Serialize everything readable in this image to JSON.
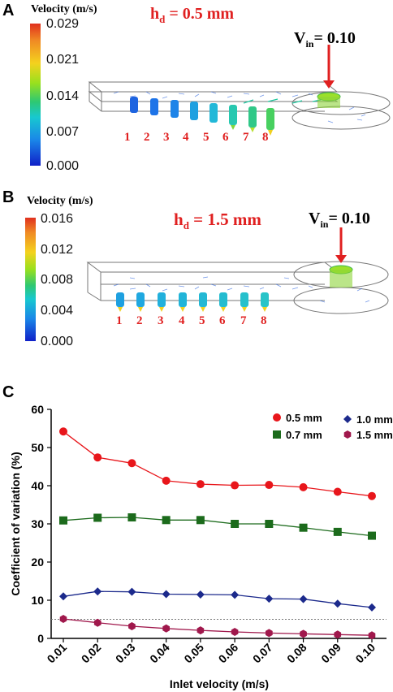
{
  "panel_a": {
    "letter": "A",
    "colorbar_title": "Velocity (m/s)",
    "ticks": [
      "0.029",
      "0.021",
      "0.014",
      "0.007",
      "0.000"
    ],
    "hd_prefix": "h",
    "hd_sub": "d",
    "hd_value": " = 0.5 mm",
    "vin_prefix": "V",
    "vin_sub": "in",
    "vin_value": "= 0.10",
    "nozzles": [
      "1",
      "2",
      "3",
      "4",
      "5",
      "6",
      "7",
      "8"
    ]
  },
  "panel_b": {
    "letter": "B",
    "colorbar_title": "Velocity (m/s)",
    "ticks": [
      "0.016",
      "0.012",
      "0.008",
      "0.004",
      "0.000"
    ],
    "hd_prefix": "h",
    "hd_sub": "d",
    "hd_value": " = 1.5 mm",
    "vin_prefix": "V",
    "vin_sub": "in",
    "vin_value": "= 0.10",
    "nozzles": [
      "1",
      "2",
      "3",
      "4",
      "5",
      "6",
      "7",
      "8"
    ]
  },
  "panel_c": {
    "letter": "C"
  },
  "colors": {
    "accent_red": "#e02020",
    "s05": "#e8161b",
    "s07": "#1c6b1c",
    "s10": "#1c2a8c",
    "s15": "#a0184c"
  },
  "chart_data": {
    "type": "line",
    "xlabel": "Inlet velocity (m/s)",
    "ylabel": "Coefficient of variation (%)",
    "x": [
      "0.01",
      "0.02",
      "0.03",
      "0.04",
      "0.05",
      "0.06",
      "0.07",
      "0.08",
      "0.09",
      "0.10"
    ],
    "ylim": [
      0,
      60
    ],
    "yticks": [
      "0",
      "10",
      "20",
      "30",
      "40",
      "50",
      "60"
    ],
    "reference_line": 5,
    "legend_position": "top-right",
    "series": [
      {
        "name": "0.5 mm",
        "color": "#e8161b",
        "marker": "circle",
        "values": [
          54.2,
          47.4,
          45.9,
          41.3,
          40.4,
          40.1,
          40.2,
          39.6,
          38.4,
          37.3
        ]
      },
      {
        "name": "0.7 mm",
        "color": "#1c6b1c",
        "marker": "square",
        "values": [
          30.9,
          31.6,
          31.7,
          31.0,
          31.0,
          30.0,
          30.0,
          29.0,
          27.9,
          26.9
        ]
      },
      {
        "name": "1.0 mm",
        "color": "#1c2a8c",
        "marker": "diamond",
        "values": [
          11.0,
          12.3,
          12.2,
          11.6,
          11.5,
          11.4,
          10.4,
          10.3,
          9.1,
          8.1
        ]
      },
      {
        "name": "1.5 mm",
        "color": "#a0184c",
        "marker": "hexagon",
        "values": [
          5.1,
          4.1,
          3.2,
          2.6,
          2.1,
          1.7,
          1.4,
          1.2,
          1.0,
          0.8
        ]
      }
    ]
  }
}
